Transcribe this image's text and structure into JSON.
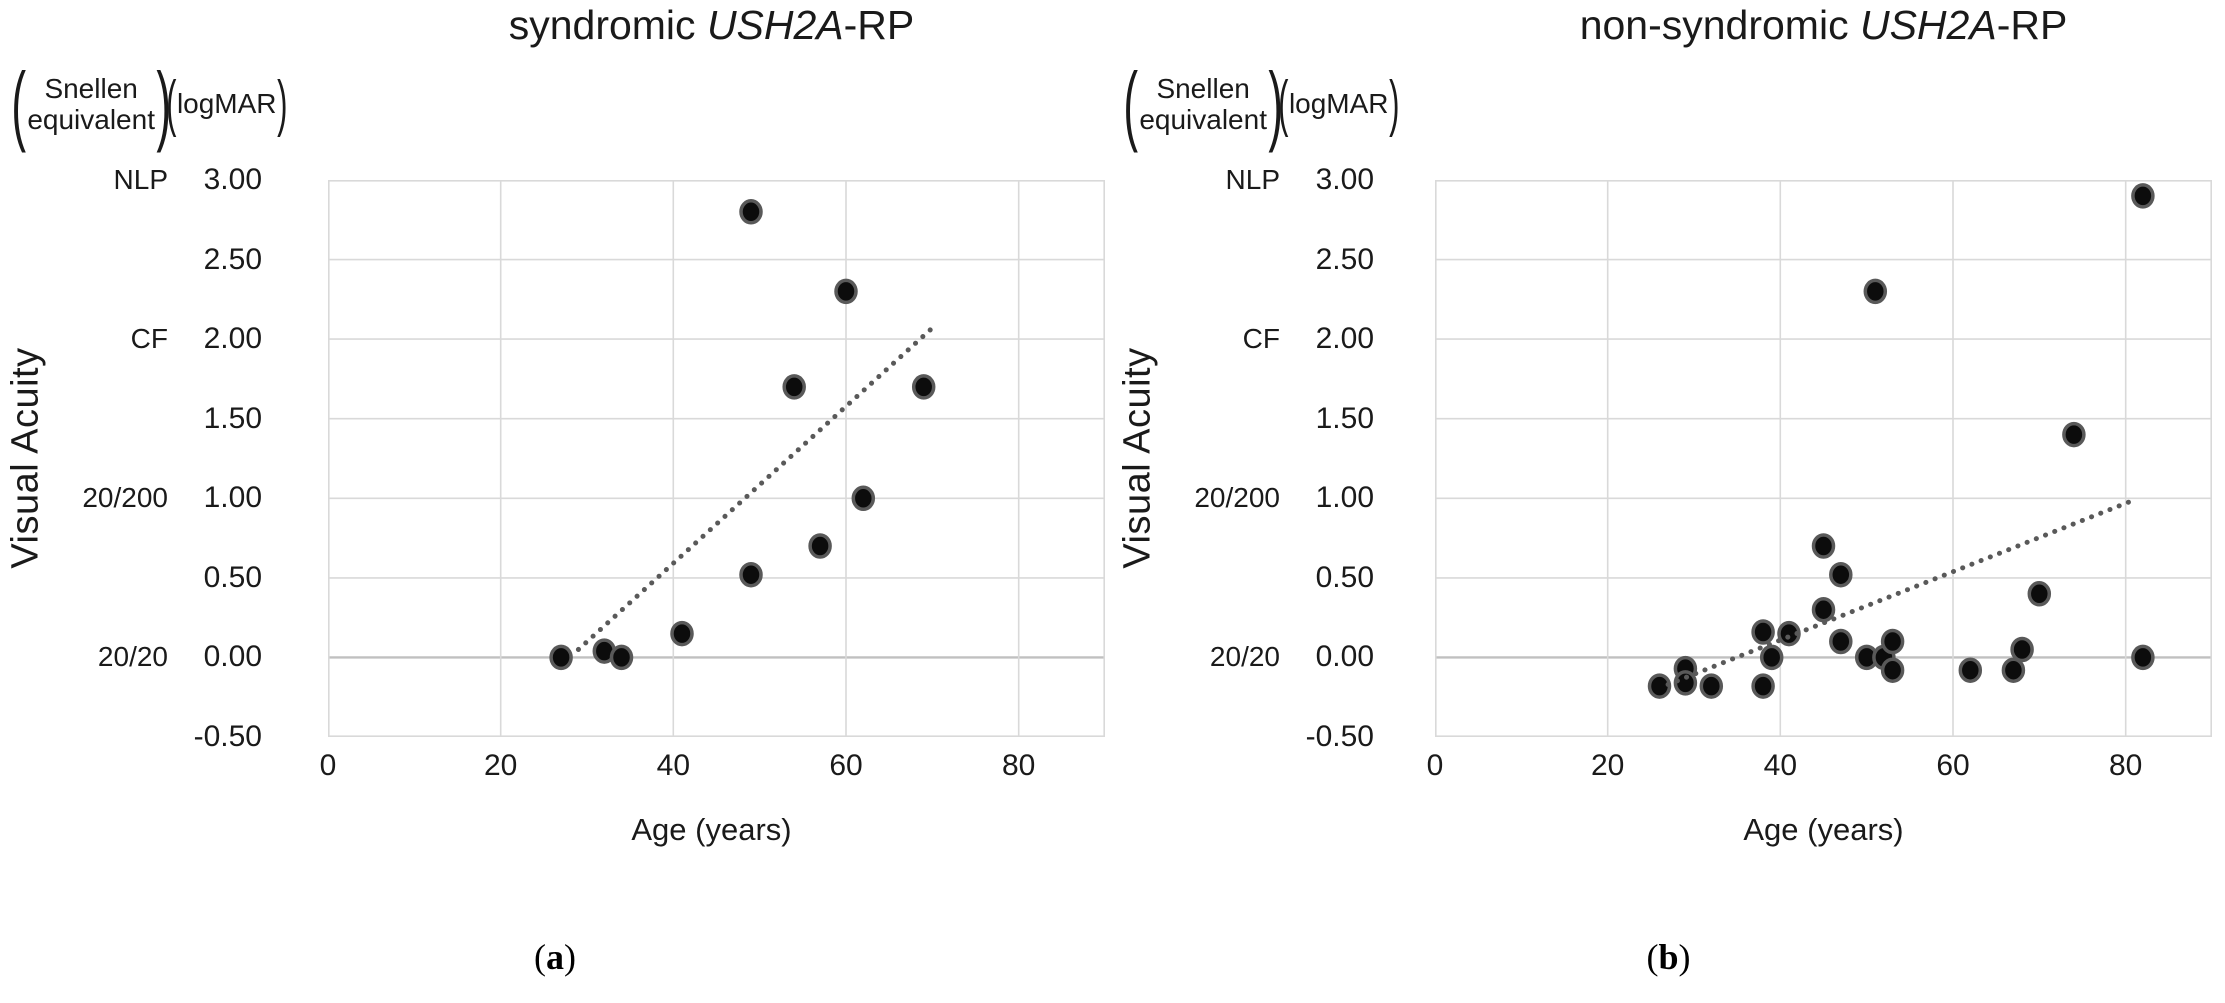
{
  "figure": {
    "description_visible_text_only": true
  },
  "style": {
    "point_fill": "#0c0c0c",
    "point_stroke": "#595959",
    "grid_color": "#d9d9d9",
    "zero_line_color": "#c0c0c0",
    "border_color": "#d9d9d9",
    "trend_color": "#595959",
    "text_color": "#1a1a1a"
  },
  "chart_data": [
    {
      "type": "scatter",
      "panel": "a",
      "title": "syndromic USH2A-RP",
      "title_parts": {
        "prefix": "syndromic ",
        "gene_italic": "USH2A",
        "suffix": "-RP"
      },
      "xlabel": "Age (years)",
      "ylabel": "Visual Acuity",
      "y_axis_header": {
        "paren_open": "(",
        "secondary_line1": "Snellen",
        "secondary_line2": "equivalent",
        "paren_close": ")",
        "primary": "logMAR"
      },
      "xlim": [
        0,
        90
      ],
      "ylim": [
        -0.5,
        3.0
      ],
      "grid": true,
      "legend": "none",
      "x_ticks": [
        "0",
        "20",
        "40",
        "60",
        "80"
      ],
      "y_ticks": [
        "3.00",
        "2.50",
        "2.00",
        "1.50",
        "1.00",
        "0.50",
        "0.00",
        "-0.50"
      ],
      "snellen_ticks": [
        {
          "label": "NLP",
          "logmar": 3.0
        },
        {
          "label": "CF",
          "logmar": 2.0
        },
        {
          "label": "20/200",
          "logmar": 1.0
        },
        {
          "label": "20/20",
          "logmar": 0.0
        }
      ],
      "points": [
        [
          27,
          0.0
        ],
        [
          32,
          0.04
        ],
        [
          34,
          0.0
        ],
        [
          41,
          0.15
        ],
        [
          49,
          0.52
        ],
        [
          49,
          2.8
        ],
        [
          54,
          1.7
        ],
        [
          57,
          0.7
        ],
        [
          60,
          2.3
        ],
        [
          62,
          1.0
        ],
        [
          69,
          1.7
        ]
      ],
      "trendline": {
        "style": "dotted",
        "x1": 29,
        "y1": 0.05,
        "x2": 70,
        "y2": 2.07
      },
      "panel_label": {
        "open": "(",
        "letter": "a",
        "close": ")"
      }
    },
    {
      "type": "scatter",
      "panel": "b",
      "title": "non-syndromic USH2A-RP",
      "title_parts": {
        "prefix": "non-syndromic ",
        "gene_italic": "USH2A",
        "suffix": "-RP"
      },
      "xlabel": "Age (years)",
      "ylabel": "Visual Acuity",
      "y_axis_header": {
        "paren_open": "(",
        "secondary_line1": "Snellen",
        "secondary_line2": "equivalent",
        "paren_close": ")",
        "primary": "logMAR"
      },
      "xlim": [
        0,
        90
      ],
      "ylim": [
        -0.5,
        3.0
      ],
      "grid": true,
      "legend": "none",
      "x_ticks": [
        "0",
        "20",
        "40",
        "60",
        "80"
      ],
      "y_ticks": [
        "3.00",
        "2.50",
        "2.00",
        "1.50",
        "1.00",
        "0.50",
        "0.00",
        "-0.50"
      ],
      "snellen_ticks": [
        {
          "label": "NLP",
          "logmar": 3.0
        },
        {
          "label": "CF",
          "logmar": 2.0
        },
        {
          "label": "20/200",
          "logmar": 1.0
        },
        {
          "label": "20/20",
          "logmar": 0.0
        }
      ],
      "points": [
        [
          26,
          -0.18
        ],
        [
          29,
          -0.07
        ],
        [
          29,
          -0.16
        ],
        [
          32,
          -0.18
        ],
        [
          38,
          0.16
        ],
        [
          38,
          -0.18
        ],
        [
          39,
          0.0
        ],
        [
          41,
          0.15
        ],
        [
          45,
          0.3
        ],
        [
          45,
          0.7
        ],
        [
          47,
          0.1
        ],
        [
          47,
          0.52
        ],
        [
          50,
          0.0
        ],
        [
          51,
          2.3
        ],
        [
          52,
          0.0
        ],
        [
          53,
          0.1
        ],
        [
          53,
          -0.08
        ],
        [
          62,
          -0.08
        ],
        [
          67,
          -0.08
        ],
        [
          68,
          0.05
        ],
        [
          70,
          0.4
        ],
        [
          74,
          1.4
        ],
        [
          82,
          0.0
        ],
        [
          82,
          2.9
        ]
      ],
      "trendline": {
        "style": "dotted",
        "x1": 27,
        "y1": -0.17,
        "x2": 81,
        "y2": 0.99
      },
      "panel_label": {
        "open": "(",
        "letter": "b",
        "close": ")"
      }
    }
  ]
}
